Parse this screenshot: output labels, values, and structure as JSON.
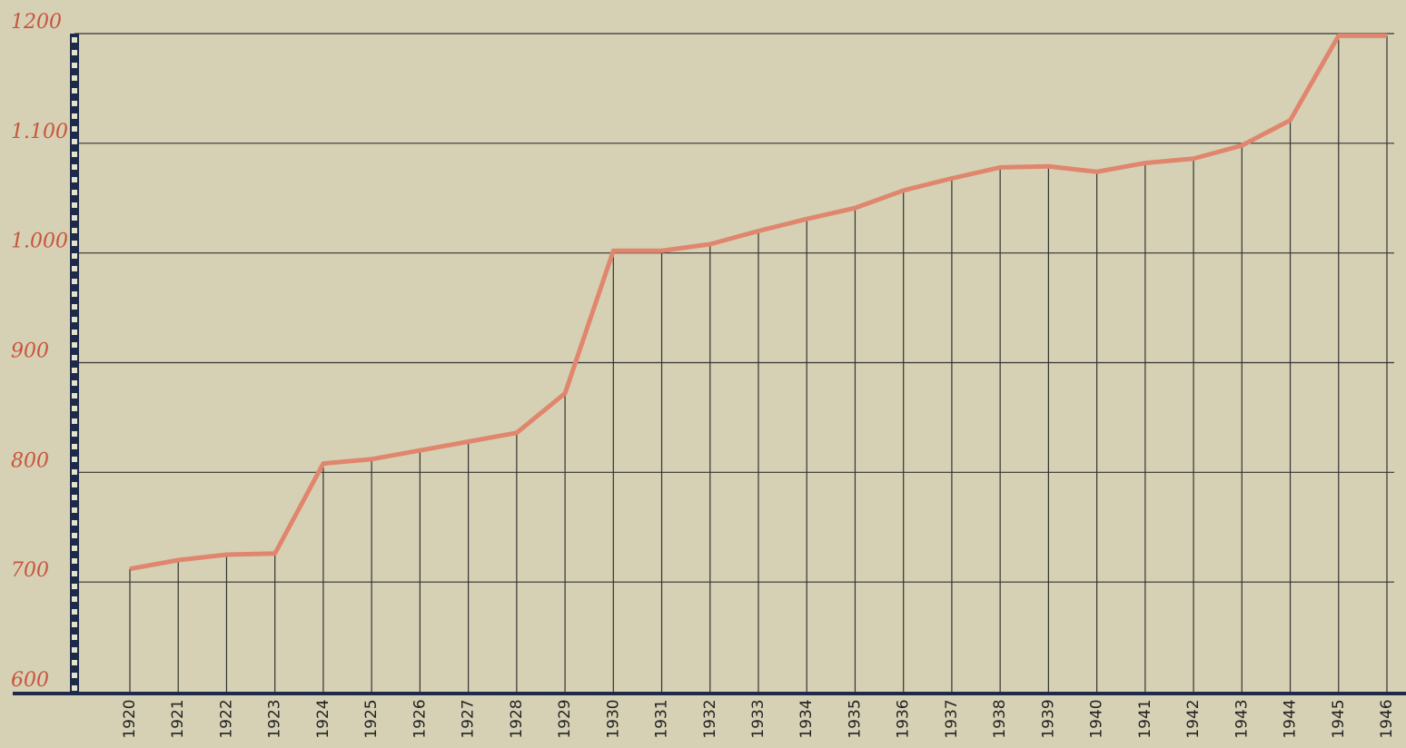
{
  "chart_data": {
    "type": "line",
    "categories": [
      "1920",
      "1921",
      "1922",
      "1923",
      "1924",
      "1925",
      "1926",
      "1927",
      "1928",
      "1929",
      "1930",
      "1931",
      "1932",
      "1933",
      "1934",
      "1935",
      "1936",
      "1937",
      "1938",
      "1939",
      "1940",
      "1941",
      "1942",
      "1943",
      "1944",
      "1945",
      "1946"
    ],
    "values": [
      712,
      720,
      725,
      726,
      808,
      812,
      820,
      828,
      836,
      872,
      1002,
      1002,
      1008,
      1020,
      1031,
      1041,
      1057,
      1068,
      1078,
      1079,
      1074,
      1082,
      1086,
      1098,
      1121,
      1198,
      1198
    ],
    "color": "#e0866e",
    "ylim": [
      600,
      1200
    ],
    "yticks": [
      600,
      700,
      800,
      900,
      {
        "value": 1000,
        "label": "1.000"
      },
      {
        "value": 1100,
        "label": "1.100"
      },
      1200
    ],
    "grid": true
  }
}
